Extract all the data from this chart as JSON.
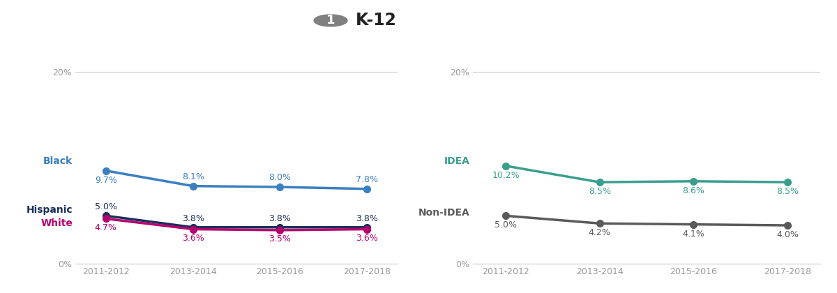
{
  "title": "K-12",
  "title_number": "1",
  "x_labels": [
    "2011-2012",
    "2013-2014",
    "2015-2016",
    "2017-2018"
  ],
  "x_values": [
    0,
    1,
    2,
    3
  ],
  "left_panel": {
    "series": [
      {
        "label": "Black",
        "color": "#3a7fc1",
        "values": [
          9.7,
          8.1,
          8.0,
          7.8
        ]
      },
      {
        "label": "Hispanic",
        "color": "#1a2e5a",
        "values": [
          5.0,
          3.8,
          3.8,
          3.8
        ]
      },
      {
        "label": "White",
        "color": "#b5006e",
        "values": [
          4.7,
          3.6,
          3.5,
          3.6
        ]
      }
    ]
  },
  "right_panel": {
    "series": [
      {
        "label": "IDEA",
        "color": "#3a9e8d",
        "values": [
          10.2,
          8.5,
          8.6,
          8.5
        ]
      },
      {
        "label": "Non-IDEA",
        "color": "#5a5a5a",
        "values": [
          5.0,
          4.2,
          4.1,
          4.0
        ]
      }
    ]
  },
  "bg_color": "#ffffff",
  "axis_color": "#cccccc",
  "tick_label_color": "#999999",
  "series_label_fontsize": 10,
  "value_fontsize": 9,
  "title_fontsize": 17,
  "badge_fontsize": 13,
  "xtick_fontsize": 9,
  "ymax": 22,
  "y20_label": "20%",
  "y0_label": "0%",
  "line_width": 2.5,
  "marker_size": 7,
  "badge_color": "#808080",
  "title_color": "#222222"
}
